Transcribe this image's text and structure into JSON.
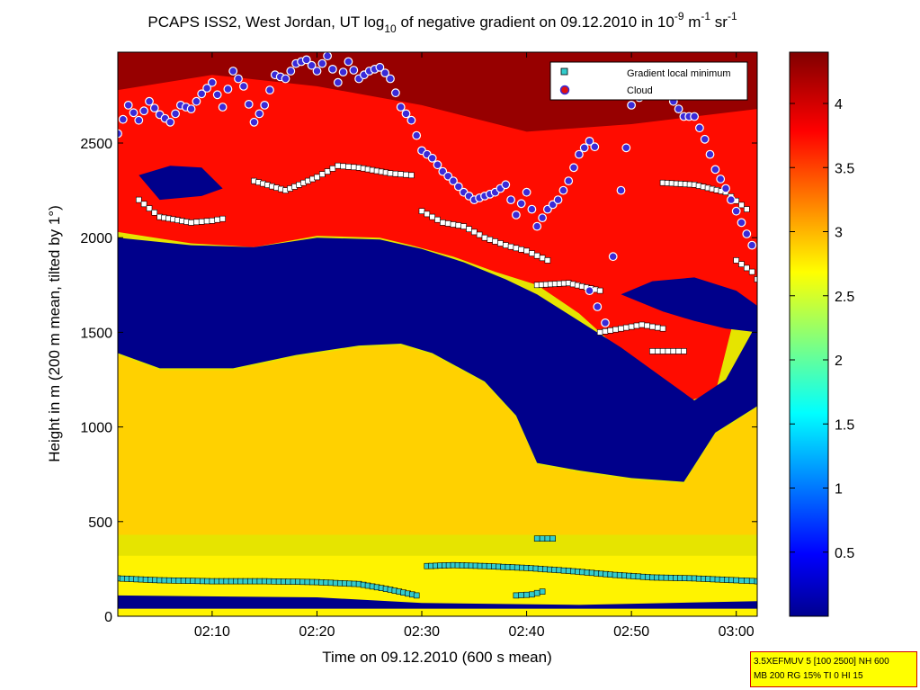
{
  "figure": {
    "title_prefix": "PCAPS ISS2, West Jordan, UT log",
    "title_sub": "10",
    "title_mid": " of negative gradient on 09.12.2010 in 10",
    "title_sup1": "-9",
    "title_unit1": " m",
    "title_sup2": "-1",
    "title_unit2": " sr",
    "title_sup3": "-1",
    "info_line1": "3.5XEFMUV 5 [100 2500] NH 600",
    "info_line2": "MB 200 RG 15% TI 0 HI 15"
  },
  "colors": {
    "low": "#00008f",
    "mid": "#f0e600",
    "high": "#e82a00",
    "top": "#800000",
    "gradient_marker": "#33cccc",
    "cloud_marker": "#e01010",
    "cloud_ring": "#3a2ad8"
  },
  "chart_data": {
    "type": "heatmap",
    "xlabel": "Time on 09.12.2010 (600 s mean)",
    "ylabel": "Height in m (200 m mean, tilted by 1°)",
    "x_ticks": [
      "02:10",
      "02:20",
      "02:30",
      "02:40",
      "02:50",
      "03:00"
    ],
    "x_tick_minutes": [
      10,
      20,
      30,
      40,
      50,
      60
    ],
    "xlim_minutes": [
      1,
      62
    ],
    "y_ticks": [
      0,
      500,
      1000,
      1500,
      2000,
      2500
    ],
    "ylim": [
      0,
      2980
    ],
    "colorbar": {
      "ticks": [
        0.5,
        1,
        1.5,
        2,
        2.5,
        3,
        3.5,
        4
      ],
      "tick_labels": [
        "0.5",
        "1",
        "1.5",
        "2",
        "2.5",
        "3",
        "3.5",
        "4"
      ],
      "range": [
        0,
        4.4
      ],
      "colormap": "jet"
    },
    "legend": {
      "placement": "top-right",
      "entries": [
        "Gradient local minimum",
        "Cloud"
      ]
    },
    "field_levels": {
      "near_surface": 2.8,
      "lower_layer": 2.95,
      "transition": 2.6,
      "gap": 0.05,
      "upper_layer": 3.8,
      "upper_peak": 4.3
    },
    "series": [
      {
        "name": "Gradient local minimum",
        "segments": [
          {
            "t": [
              1,
              5,
              10,
              15,
              20,
              24,
              27,
              29.5
            ],
            "h": [
              200,
              190,
              185,
              185,
              180,
              170,
              140,
              110
            ]
          },
          {
            "t": [
              30.5,
              33,
              36,
              40,
              44,
              48,
              52,
              56,
              60,
              62
            ],
            "h": [
              265,
              270,
              265,
              255,
              240,
              220,
              205,
              200,
              190,
              185
            ]
          },
          {
            "t": [
              39,
              40.5,
              41.5
            ],
            "h": [
              110,
              115,
              130
            ]
          },
          {
            "t": [
              41,
              42.5
            ],
            "h": [
              410,
              410
            ]
          },
          {
            "t": [
              3,
              5,
              8,
              10,
              11
            ],
            "h": [
              2200,
              2110,
              2080,
              2090,
              2100
            ]
          },
          {
            "t": [
              14,
              17,
              20,
              22,
              24,
              27,
              29
            ],
            "h": [
              2300,
              2250,
              2320,
              2380,
              2370,
              2340,
              2330
            ]
          },
          {
            "t": [
              30,
              32,
              34,
              36,
              38,
              40,
              42
            ],
            "h": [
              2140,
              2080,
              2060,
              2000,
              1960,
              1930,
              1880
            ]
          },
          {
            "t": [
              41,
              44,
              47
            ],
            "h": [
              1750,
              1760,
              1720
            ]
          },
          {
            "t": [
              47,
              49,
              51,
              53
            ],
            "h": [
              1500,
              1520,
              1540,
              1520
            ]
          },
          {
            "t": [
              52,
              53.5,
              55
            ],
            "h": [
              1400,
              1400,
              1400
            ]
          },
          {
            "t": [
              53,
              56,
              59,
              61
            ],
            "h": [
              2290,
              2280,
              2240,
              2150
            ]
          },
          {
            "t": [
              60,
              61.5,
              62
            ],
            "h": [
              1880,
              1820,
              1780
            ]
          }
        ]
      },
      {
        "name": "Cloud",
        "segments": [
          {
            "t": [
              1,
              2,
              3,
              4,
              5,
              6,
              7,
              8,
              9,
              10,
              11,
              12,
              13,
              14,
              15,
              16,
              17,
              18,
              19,
              20,
              21,
              22,
              23,
              24,
              25,
              26,
              27,
              28,
              29,
              30,
              31,
              32,
              33,
              34,
              35,
              36,
              37,
              38,
              39,
              40,
              41,
              42,
              43,
              44,
              45,
              46,
              47
            ],
            "h": [
              2550,
              2700,
              2620,
              2720,
              2650,
              2610,
              2700,
              2680,
              2760,
              2820,
              2690,
              2880,
              2800,
              2610,
              2700,
              2860,
              2840,
              2920,
              2940,
              2880,
              2960,
              2820,
              2930,
              2840,
              2880,
              2900,
              2840,
              2690,
              2620,
              2460,
              2420,
              2350,
              2300,
              2240,
              2200,
              2220,
              2240,
              2280,
              2120,
              2240,
              2060,
              2150,
              2200,
              2300,
              2440,
              2510,
              2450
            ]
          },
          {
            "t": [
              46,
              47.5,
              49,
              50,
              51.5,
              52.5,
              54,
              55,
              56,
              57,
              58,
              59,
              60,
              61,
              62
            ],
            "h": [
              1720,
              1550,
              2250,
              2700,
              2780,
              2850,
              2720,
              2640,
              2640,
              2520,
              2360,
              2260,
              2140,
              2020,
              1900
            ]
          }
        ]
      }
    ]
  }
}
